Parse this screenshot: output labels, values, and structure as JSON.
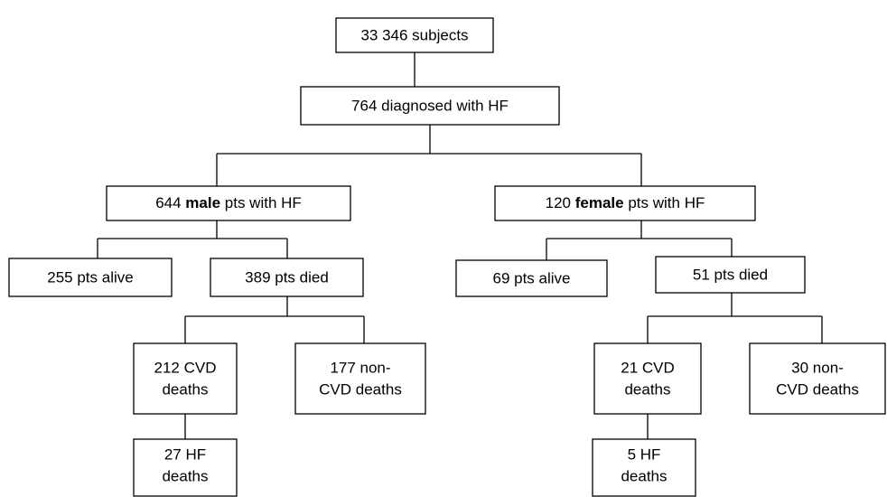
{
  "nodes": [
    {
      "lines": [
        "33 346 subjects"
      ]
    },
    {
      "lines": [
        "764 diagnosed with HF"
      ]
    },
    {
      "parts": [
        "644 ",
        "male",
        " pts with HF"
      ]
    },
    {
      "parts": [
        "120 ",
        "female",
        " pts with HF"
      ]
    },
    {
      "lines": [
        "255 pts alive"
      ]
    },
    {
      "lines": [
        "389 pts died"
      ]
    },
    {
      "lines": [
        "69 pts alive"
      ]
    },
    {
      "lines": [
        "51 pts died"
      ]
    },
    {
      "lines": [
        "212 CVD",
        "deaths"
      ]
    },
    {
      "lines": [
        "177 non-",
        "CVD deaths"
      ]
    },
    {
      "lines": [
        "21 CVD",
        "deaths"
      ]
    },
    {
      "lines": [
        "30 non-",
        "CVD deaths"
      ]
    },
    {
      "lines": [
        "27 HF",
        "deaths"
      ]
    },
    {
      "lines": [
        "5 HF",
        "deaths"
      ]
    }
  ]
}
